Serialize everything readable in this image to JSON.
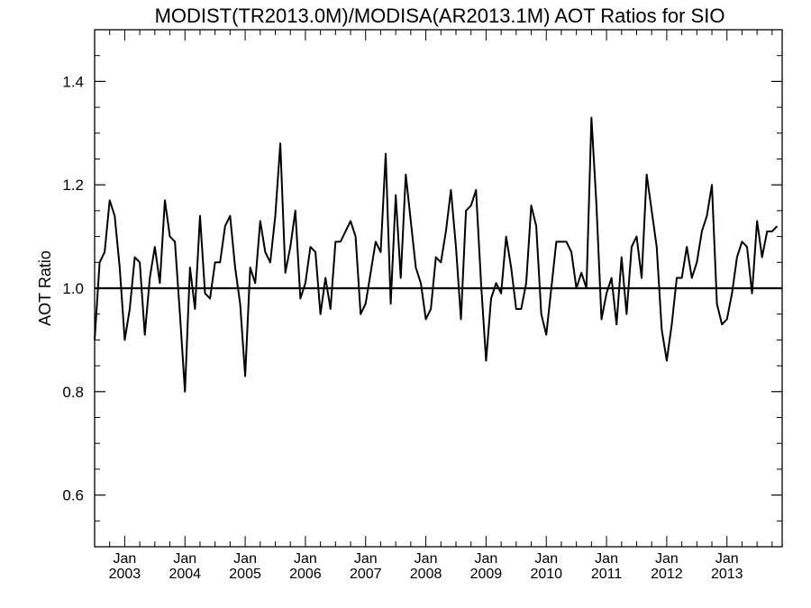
{
  "chart_data": {
    "type": "line",
    "title": "MODIST(TR2013.0M)/MODISA(AR2013.1M)  AOT Ratios for SIO",
    "xlabel": "",
    "ylabel": "AOT Ratio",
    "x_start": "2002-07",
    "x_end": "2013-12",
    "xlim": [
      "2002-07",
      "2013-12"
    ],
    "ylim": [
      0.5,
      1.5
    ],
    "yticks": [
      0.6,
      0.8,
      1.0,
      1.2,
      1.4
    ],
    "ytick_labels": [
      "0.6",
      "0.8",
      "1.0",
      "1.2",
      "1.4"
    ],
    "xticks": [
      {
        "date": "2003-01",
        "month": "Jan",
        "year": "2003"
      },
      {
        "date": "2004-01",
        "month": "Jan",
        "year": "2004"
      },
      {
        "date": "2005-01",
        "month": "Jan",
        "year": "2005"
      },
      {
        "date": "2006-01",
        "month": "Jan",
        "year": "2006"
      },
      {
        "date": "2007-01",
        "month": "Jan",
        "year": "2007"
      },
      {
        "date": "2008-01",
        "month": "Jan",
        "year": "2008"
      },
      {
        "date": "2009-01",
        "month": "Jan",
        "year": "2009"
      },
      {
        "date": "2010-01",
        "month": "Jan",
        "year": "2010"
      },
      {
        "date": "2011-01",
        "month": "Jan",
        "year": "2011"
      },
      {
        "date": "2012-01",
        "month": "Jan",
        "year": "2012"
      },
      {
        "date": "2013-01",
        "month": "Jan",
        "year": "2013"
      }
    ],
    "reference_line": 1.0,
    "line_color": "#000000",
    "series": [
      {
        "values": [
          0.9,
          1.05,
          1.07,
          1.17,
          1.14,
          1.04,
          0.9,
          0.96,
          1.06,
          1.05,
          0.91,
          1.02,
          1.08,
          1.01,
          1.17,
          1.1,
          1.09,
          0.95,
          0.8,
          1.04,
          0.96,
          1.14,
          0.99,
          0.98,
          1.05,
          1.05,
          1.12,
          1.14,
          1.04,
          0.97,
          0.83,
          1.04,
          1.01,
          1.13,
          1.07,
          1.05,
          1.14,
          1.28,
          1.03,
          1.08,
          1.15,
          0.98,
          1.01,
          1.08,
          1.07,
          0.95,
          1.02,
          0.96,
          1.09,
          1.09,
          1.11,
          1.13,
          1.1,
          0.95,
          0.97,
          1.03,
          1.09,
          1.07,
          1.26,
          0.97,
          1.18,
          1.02,
          1.22,
          1.13,
          1.04,
          1.01,
          0.94,
          0.96,
          1.06,
          1.05,
          1.11,
          1.19,
          1.08,
          0.94,
          1.15,
          1.16,
          1.19,
          1.01,
          0.86,
          0.98,
          1.01,
          0.99,
          1.1,
          1.04,
          0.96,
          0.96,
          1.01,
          1.16,
          1.12,
          0.95,
          0.91,
          1.0,
          1.09,
          1.09,
          1.09,
          1.07,
          1.0,
          1.03,
          1.0,
          1.33,
          1.16,
          0.94,
          0.99,
          1.02,
          0.93,
          1.06,
          0.95,
          1.08,
          1.1,
          1.02,
          1.22,
          1.15,
          1.08,
          0.92,
          0.86,
          0.93,
          1.02,
          1.02,
          1.08,
          1.02,
          1.05,
          1.11,
          1.14,
          1.2,
          0.97,
          0.93,
          0.94,
          0.99,
          1.06,
          1.09,
          1.08,
          0.99,
          1.13,
          1.06,
          1.11,
          1.11,
          1.12
        ]
      }
    ]
  }
}
